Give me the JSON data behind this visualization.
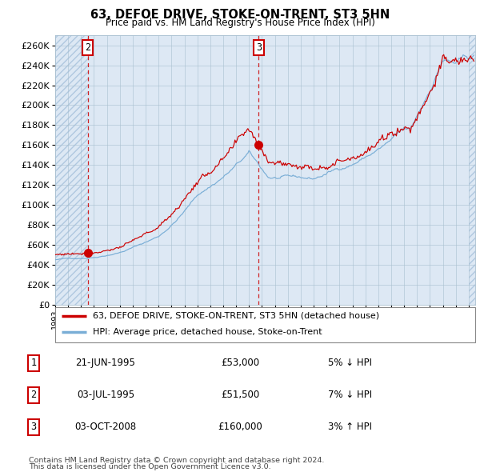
{
  "title": "63, DEFOE DRIVE, STOKE-ON-TRENT, ST3 5HN",
  "subtitle": "Price paid vs. HM Land Registry's House Price Index (HPI)",
  "xlim_start": 1993.0,
  "xlim_end": 2025.5,
  "ylim": [
    0,
    270000
  ],
  "yticks": [
    0,
    20000,
    40000,
    60000,
    80000,
    100000,
    120000,
    140000,
    160000,
    180000,
    200000,
    220000,
    240000,
    260000
  ],
  "plot_bg_color": "#dde8f4",
  "hatch_color": "#b0c8e0",
  "red_line_color": "#cc0000",
  "blue_line_color": "#7aaed6",
  "transaction2_date": 1995.51,
  "transaction2_price": 51500,
  "transaction3_date": 2008.75,
  "transaction3_price": 160000,
  "hatch_right_start": 2025.0,
  "legend_label_red": "63, DEFOE DRIVE, STOKE-ON-TRENT, ST3 5HN (detached house)",
  "legend_label_blue": "HPI: Average price, detached house, Stoke-on-Trent",
  "table_rows": [
    {
      "num": "1",
      "date": "21-JUN-1995",
      "price": "£53,000",
      "pct": "5% ↓ HPI"
    },
    {
      "num": "2",
      "date": "03-JUL-1995",
      "price": "£51,500",
      "pct": "7% ↓ HPI"
    },
    {
      "num": "3",
      "date": "03-OCT-2008",
      "price": "£160,000",
      "pct": "3% ↑ HPI"
    }
  ],
  "footnote1": "Contains HM Land Registry data © Crown copyright and database right 2024.",
  "footnote2": "This data is licensed under the Open Government Licence v3.0."
}
